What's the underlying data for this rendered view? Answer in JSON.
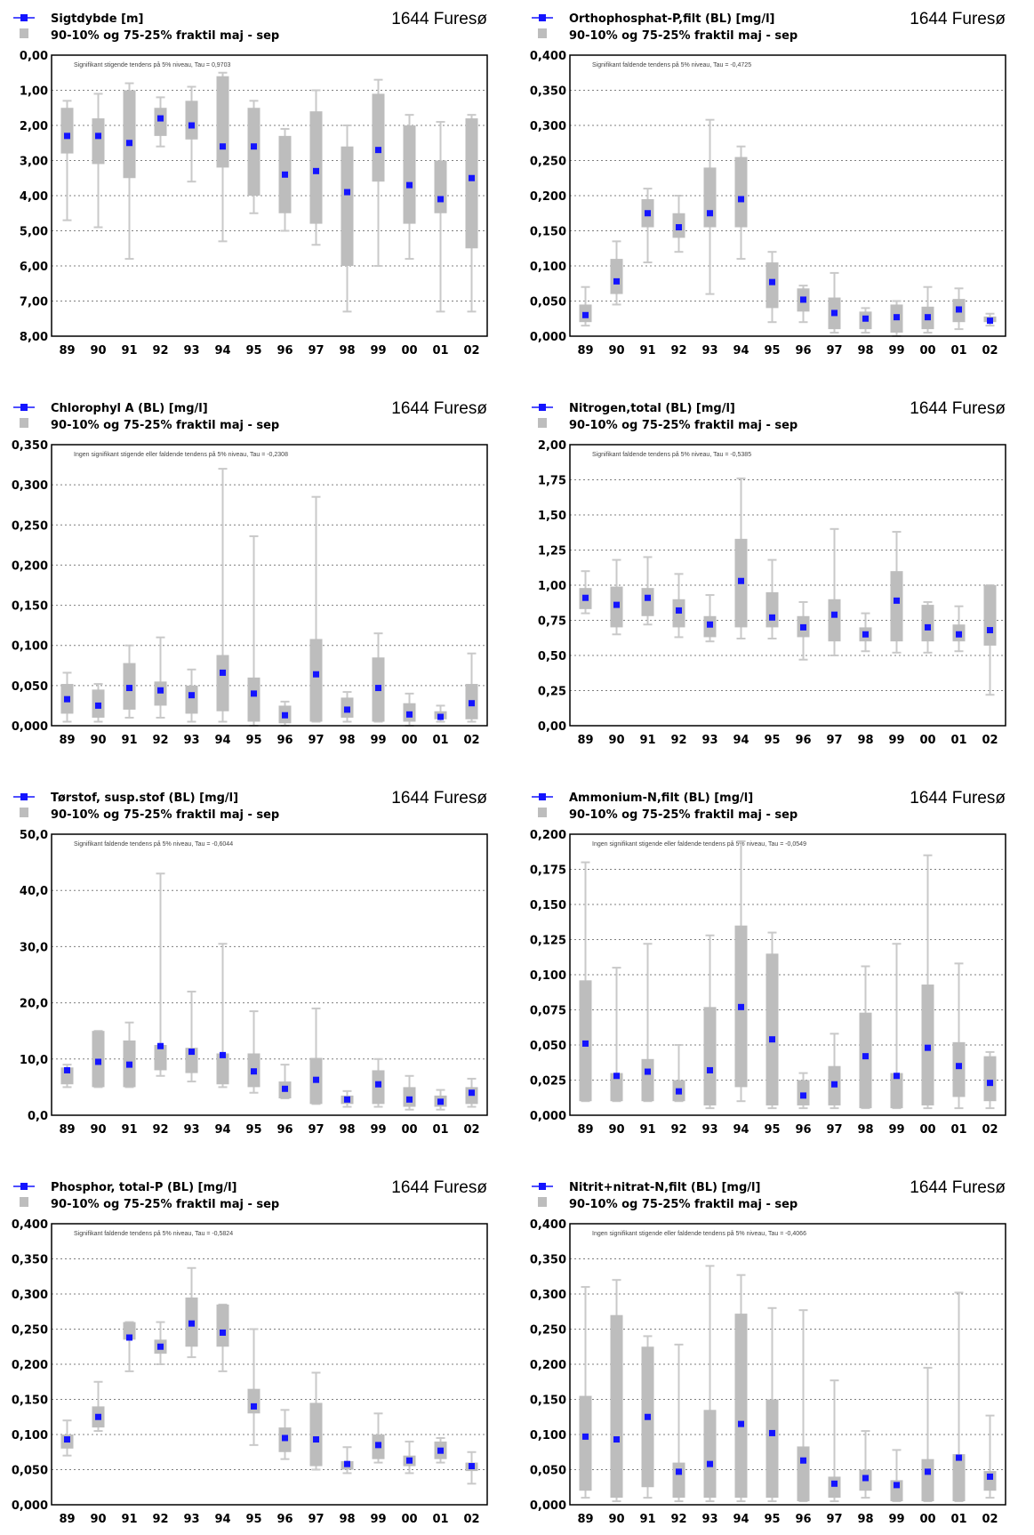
{
  "station": "1644 Furesø",
  "legend_range_label": "90-10% og 75-25% fraktil maj - sep",
  "colors": {
    "median": "#1414ff",
    "box": "#bdbdbd",
    "whisker": "#c9c9c9"
  },
  "chart_data": [
    {
      "type": "box",
      "title": "Sigtdybde [m]",
      "note": "Signifikant stigende tendens på 5% niveau, Tau = 0,9703",
      "reversed": true,
      "ylim": [
        0,
        8
      ],
      "yticks": [
        "0,00",
        "1,00",
        "2,00",
        "3,00",
        "4,00",
        "5,00",
        "6,00",
        "7,00",
        "8,00"
      ],
      "categories": [
        "89",
        "90",
        "91",
        "92",
        "93",
        "94",
        "95",
        "96",
        "97",
        "98",
        "99",
        "00",
        "01",
        "02"
      ],
      "p10": [
        1.3,
        1.1,
        0.8,
        1.2,
        0.9,
        0.5,
        1.3,
        2.1,
        1.0,
        2.0,
        0.7,
        1.7,
        1.9,
        1.7
      ],
      "p25": [
        1.5,
        1.8,
        1.0,
        1.5,
        1.3,
        0.6,
        1.5,
        2.3,
        1.6,
        2.6,
        1.1,
        2.0,
        3.0,
        1.8
      ],
      "median": [
        2.3,
        2.3,
        2.5,
        1.8,
        2.0,
        2.6,
        2.6,
        3.4,
        3.3,
        3.9,
        2.7,
        3.7,
        4.1,
        3.5
      ],
      "p75": [
        2.8,
        3.1,
        3.5,
        2.3,
        2.4,
        3.2,
        4.0,
        4.5,
        4.8,
        6.0,
        3.6,
        4.8,
        4.5,
        5.5
      ],
      "p90": [
        4.7,
        4.9,
        5.8,
        2.6,
        3.6,
        5.3,
        4.5,
        5.0,
        5.4,
        7.3,
        6.0,
        5.8,
        7.3,
        7.3
      ]
    },
    {
      "type": "box",
      "title": "Orthophosphat-P,filt (BL) [mg/l]",
      "note": "Signifikant faldende tendens på 5% niveau, Tau = -0,4725",
      "reversed": false,
      "ylim": [
        0,
        0.4
      ],
      "yticks": [
        "0,000",
        "0,050",
        "0,100",
        "0,150",
        "0,200",
        "0,250",
        "0,300",
        "0,350",
        "0,400"
      ],
      "categories": [
        "89",
        "90",
        "91",
        "92",
        "93",
        "94",
        "95",
        "96",
        "97",
        "98",
        "99",
        "00",
        "01",
        "02"
      ],
      "p10": [
        0.015,
        0.045,
        0.105,
        0.12,
        0.06,
        0.11,
        0.02,
        0.02,
        0.005,
        0.005,
        0.0,
        0.005,
        0.01,
        0.015
      ],
      "p25": [
        0.02,
        0.06,
        0.155,
        0.14,
        0.155,
        0.155,
        0.04,
        0.035,
        0.01,
        0.01,
        0.005,
        0.01,
        0.02,
        0.02
      ],
      "median": [
        0.03,
        0.078,
        0.175,
        0.155,
        0.175,
        0.195,
        0.077,
        0.052,
        0.033,
        0.025,
        0.027,
        0.027,
        0.038,
        0.022
      ],
      "p75": [
        0.045,
        0.11,
        0.195,
        0.175,
        0.24,
        0.255,
        0.105,
        0.068,
        0.055,
        0.035,
        0.045,
        0.042,
        0.053,
        0.028
      ],
      "p90": [
        0.07,
        0.135,
        0.21,
        0.2,
        0.308,
        0.27,
        0.12,
        0.072,
        0.09,
        0.04,
        0.05,
        0.07,
        0.068,
        0.032
      ]
    },
    {
      "type": "box",
      "title": "Chlorophyl A (BL) [mg/l]",
      "note": "Ingen signifikant stigende eller faldende tendens på 5% niveau, Tau = -0,2308",
      "reversed": false,
      "ylim": [
        0,
        0.35
      ],
      "yticks": [
        "0,000",
        "0,050",
        "0,100",
        "0,150",
        "0,200",
        "0,250",
        "0,300",
        "0,350"
      ],
      "categories": [
        "89",
        "90",
        "91",
        "92",
        "93",
        "94",
        "95",
        "96",
        "97",
        "98",
        "99",
        "00",
        "01",
        "02"
      ],
      "p10": [
        0.005,
        0.005,
        0.01,
        0.01,
        0.005,
        0.005,
        0.0,
        0.0,
        0.005,
        0.005,
        0.005,
        0.0,
        0.005,
        0.005
      ],
      "p25": [
        0.015,
        0.01,
        0.02,
        0.025,
        0.015,
        0.018,
        0.005,
        0.003,
        0.005,
        0.01,
        0.005,
        0.005,
        0.008,
        0.008
      ],
      "median": [
        0.033,
        0.025,
        0.047,
        0.044,
        0.038,
        0.066,
        0.04,
        0.013,
        0.064,
        0.02,
        0.047,
        0.014,
        0.011,
        0.028
      ],
      "p75": [
        0.052,
        0.045,
        0.078,
        0.055,
        0.05,
        0.088,
        0.06,
        0.025,
        0.108,
        0.035,
        0.085,
        0.028,
        0.018,
        0.052
      ],
      "p90": [
        0.066,
        0.052,
        0.1,
        0.11,
        0.07,
        0.32,
        0.236,
        0.03,
        0.285,
        0.042,
        0.115,
        0.04,
        0.025,
        0.09
      ]
    },
    {
      "type": "box",
      "title": "Nitrogen,total (BL) [mg/l]",
      "note": "Signifikant faldende tendens på 5% niveau, Tau = -0,5385",
      "reversed": false,
      "ylim": [
        0,
        2
      ],
      "yticks": [
        "0,00",
        "0,25",
        "0,50",
        "0,75",
        "1,00",
        "1,25",
        "1,50",
        "1,75",
        "2,00"
      ],
      "categories": [
        "89",
        "90",
        "91",
        "92",
        "93",
        "94",
        "95",
        "96",
        "97",
        "98",
        "99",
        "00",
        "01",
        "02"
      ],
      "p10": [
        0.8,
        0.65,
        0.72,
        0.63,
        0.6,
        0.62,
        0.62,
        0.47,
        0.5,
        0.53,
        0.52,
        0.52,
        0.53,
        0.22
      ],
      "p25": [
        0.83,
        0.7,
        0.78,
        0.7,
        0.63,
        0.7,
        0.7,
        0.63,
        0.6,
        0.6,
        0.6,
        0.6,
        0.6,
        0.57
      ],
      "median": [
        0.91,
        0.86,
        0.91,
        0.82,
        0.72,
        1.03,
        0.77,
        0.7,
        0.79,
        0.65,
        0.89,
        0.7,
        0.65,
        0.68
      ],
      "p75": [
        0.98,
        0.99,
        0.98,
        0.9,
        0.78,
        1.33,
        0.95,
        0.78,
        0.9,
        0.7,
        1.1,
        0.86,
        0.72,
        1.0
      ],
      "p90": [
        1.1,
        1.18,
        1.2,
        1.08,
        0.93,
        1.76,
        1.18,
        0.88,
        1.4,
        0.8,
        1.38,
        0.88,
        0.85,
        1.0
      ]
    },
    {
      "type": "box",
      "title": "Tørstof, susp.stof (BL) [mg/l]",
      "note": "Signifikant faldende tendens på 5% niveau, Tau = -0,6044",
      "reversed": false,
      "ylim": [
        0,
        50
      ],
      "yticks": [
        "0,0",
        "10,0",
        "20,0",
        "30,0",
        "40,0",
        "50,0"
      ],
      "categories": [
        "89",
        "90",
        "91",
        "92",
        "93",
        "94",
        "95",
        "96",
        "97",
        "98",
        "99",
        "00",
        "01",
        "02"
      ],
      "p10": [
        5.0,
        5.0,
        5.0,
        7.0,
        6.0,
        5.0,
        4.0,
        3.0,
        2.0,
        1.5,
        1.5,
        1.0,
        1.0,
        1.5
      ],
      "p25": [
        5.5,
        5.0,
        5.0,
        8.0,
        7.5,
        5.5,
        5.0,
        3.0,
        2.0,
        2.0,
        2.0,
        1.5,
        1.5,
        2.0
      ],
      "median": [
        8.0,
        9.5,
        9.0,
        12.3,
        11.3,
        10.7,
        7.8,
        4.7,
        6.3,
        2.8,
        5.5,
        2.8,
        2.4,
        4.0
      ],
      "p75": [
        8.5,
        15.0,
        13.3,
        12.5,
        12.0,
        11.0,
        11.0,
        6.0,
        10.2,
        3.5,
        8.0,
        5.0,
        3.5,
        5.0
      ],
      "p90": [
        9.0,
        15.0,
        16.5,
        43.0,
        22.0,
        30.5,
        18.5,
        9.0,
        19.0,
        4.3,
        10.0,
        7.0,
        4.5,
        6.5
      ]
    },
    {
      "type": "box",
      "title": "Ammonium-N,filt (BL) [mg/l]",
      "note": "Ingen signifikant stigende eller faldende tendens på 5% niveau, Tau = -0,0549",
      "reversed": false,
      "ylim": [
        0,
        0.2
      ],
      "yticks": [
        "0,000",
        "0,025",
        "0,050",
        "0,075",
        "0,100",
        "0,125",
        "0,150",
        "0,175",
        "0,200"
      ],
      "categories": [
        "89",
        "90",
        "91",
        "92",
        "93",
        "94",
        "95",
        "96",
        "97",
        "98",
        "99",
        "00",
        "01",
        "02"
      ],
      "p10": [
        0.01,
        0.01,
        0.01,
        0.01,
        0.005,
        0.01,
        0.005,
        0.005,
        0.005,
        0.005,
        0.005,
        0.005,
        0.005,
        0.005
      ],
      "p25": [
        0.01,
        0.01,
        0.01,
        0.01,
        0.007,
        0.02,
        0.007,
        0.007,
        0.007,
        0.005,
        0.005,
        0.007,
        0.013,
        0.01
      ],
      "median": [
        0.051,
        0.028,
        0.031,
        0.017,
        0.032,
        0.077,
        0.054,
        0.014,
        0.022,
        0.042,
        0.028,
        0.048,
        0.035,
        0.023
      ],
      "p75": [
        0.096,
        0.03,
        0.04,
        0.025,
        0.077,
        0.135,
        0.115,
        0.025,
        0.035,
        0.073,
        0.03,
        0.093,
        0.052,
        0.042
      ],
      "p90": [
        0.18,
        0.105,
        0.122,
        0.05,
        0.128,
        0.195,
        0.13,
        0.03,
        0.058,
        0.106,
        0.122,
        0.185,
        0.108,
        0.045
      ]
    },
    {
      "type": "box",
      "title": "Phosphor, total-P (BL) [mg/l]",
      "note": "Signifikant faldende tendens på 5% niveau, Tau = -0,5824",
      "reversed": false,
      "ylim": [
        0,
        0.4
      ],
      "yticks": [
        "0,000",
        "0,050",
        "0,100",
        "0,150",
        "0,200",
        "0,250",
        "0,300",
        "0,350",
        "0,400"
      ],
      "categories": [
        "89",
        "90",
        "91",
        "92",
        "93",
        "94",
        "95",
        "96",
        "97",
        "98",
        "99",
        "00",
        "01",
        "02"
      ],
      "p10": [
        0.07,
        0.105,
        0.19,
        0.2,
        0.21,
        0.19,
        0.085,
        0.065,
        0.05,
        0.045,
        0.06,
        0.045,
        0.06,
        0.03
      ],
      "p25": [
        0.08,
        0.11,
        0.235,
        0.215,
        0.225,
        0.225,
        0.13,
        0.075,
        0.055,
        0.05,
        0.065,
        0.055,
        0.065,
        0.048
      ],
      "median": [
        0.093,
        0.125,
        0.238,
        0.225,
        0.258,
        0.245,
        0.14,
        0.095,
        0.093,
        0.058,
        0.085,
        0.063,
        0.077,
        0.055
      ],
      "p75": [
        0.1,
        0.14,
        0.26,
        0.235,
        0.295,
        0.285,
        0.165,
        0.11,
        0.145,
        0.062,
        0.1,
        0.07,
        0.09,
        0.06
      ],
      "p90": [
        0.12,
        0.175,
        0.26,
        0.26,
        0.337,
        0.285,
        0.25,
        0.135,
        0.188,
        0.082,
        0.13,
        0.09,
        0.095,
        0.075
      ]
    },
    {
      "type": "box",
      "title": "Nitrit+nitrat-N,filt (BL) [mg/l]",
      "note": "Ingen signifikant stigende eller faldende tendens på 5% niveau, Tau = -0,4066",
      "reversed": false,
      "ylim": [
        0,
        0.4
      ],
      "yticks": [
        "0,000",
        "0,050",
        "0,100",
        "0,150",
        "0,200",
        "0,250",
        "0,300",
        "0,350",
        "0,400"
      ],
      "categories": [
        "89",
        "90",
        "91",
        "92",
        "93",
        "94",
        "95",
        "96",
        "97",
        "98",
        "99",
        "00",
        "01",
        "02"
      ],
      "p10": [
        0.01,
        0.005,
        0.01,
        0.005,
        0.005,
        0.005,
        0.005,
        0.005,
        0.005,
        0.01,
        0.005,
        0.005,
        0.005,
        0.01
      ],
      "p25": [
        0.02,
        0.01,
        0.025,
        0.01,
        0.01,
        0.01,
        0.01,
        0.005,
        0.01,
        0.02,
        0.005,
        0.005,
        0.005,
        0.02
      ],
      "median": [
        0.097,
        0.093,
        0.125,
        0.047,
        0.058,
        0.115,
        0.102,
        0.063,
        0.03,
        0.038,
        0.028,
        0.047,
        0.067,
        0.04
      ],
      "p75": [
        0.155,
        0.27,
        0.225,
        0.06,
        0.135,
        0.272,
        0.15,
        0.083,
        0.04,
        0.05,
        0.035,
        0.065,
        0.072,
        0.048
      ],
      "p90": [
        0.31,
        0.32,
        0.24,
        0.228,
        0.34,
        0.327,
        0.28,
        0.277,
        0.177,
        0.105,
        0.078,
        0.195,
        0.302,
        0.127
      ]
    }
  ]
}
